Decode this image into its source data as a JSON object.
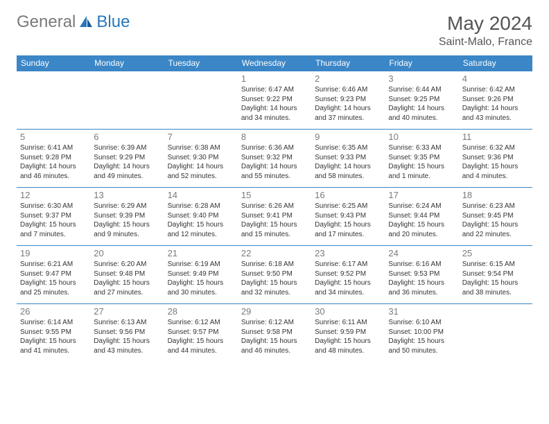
{
  "brand": {
    "part1": "General",
    "part2": "Blue"
  },
  "title": "May 2024",
  "location": "Saint-Malo, France",
  "colors": {
    "header_bg": "#3b86c6",
    "header_text": "#ffffff",
    "cell_border": "#3b86c6",
    "daynum_color": "#7a7a7a",
    "text_color": "#333333",
    "title_color": "#555555",
    "logo_gray": "#7a7a7a",
    "logo_blue": "#2976ba",
    "background": "#ffffff"
  },
  "typography": {
    "month_title_fontsize": 28,
    "location_fontsize": 16,
    "header_fontsize": 12,
    "daynum_fontsize": 13,
    "body_fontsize": 10
  },
  "day_headers": [
    "Sunday",
    "Monday",
    "Tuesday",
    "Wednesday",
    "Thursday",
    "Friday",
    "Saturday"
  ],
  "weeks": [
    [
      {
        "n": "",
        "sr": "",
        "ss": "",
        "dl": ""
      },
      {
        "n": "",
        "sr": "",
        "ss": "",
        "dl": ""
      },
      {
        "n": "",
        "sr": "",
        "ss": "",
        "dl": ""
      },
      {
        "n": "1",
        "sr": "Sunrise: 6:47 AM",
        "ss": "Sunset: 9:22 PM",
        "dl": "Daylight: 14 hours and 34 minutes."
      },
      {
        "n": "2",
        "sr": "Sunrise: 6:46 AM",
        "ss": "Sunset: 9:23 PM",
        "dl": "Daylight: 14 hours and 37 minutes."
      },
      {
        "n": "3",
        "sr": "Sunrise: 6:44 AM",
        "ss": "Sunset: 9:25 PM",
        "dl": "Daylight: 14 hours and 40 minutes."
      },
      {
        "n": "4",
        "sr": "Sunrise: 6:42 AM",
        "ss": "Sunset: 9:26 PM",
        "dl": "Daylight: 14 hours and 43 minutes."
      }
    ],
    [
      {
        "n": "5",
        "sr": "Sunrise: 6:41 AM",
        "ss": "Sunset: 9:28 PM",
        "dl": "Daylight: 14 hours and 46 minutes."
      },
      {
        "n": "6",
        "sr": "Sunrise: 6:39 AM",
        "ss": "Sunset: 9:29 PM",
        "dl": "Daylight: 14 hours and 49 minutes."
      },
      {
        "n": "7",
        "sr": "Sunrise: 6:38 AM",
        "ss": "Sunset: 9:30 PM",
        "dl": "Daylight: 14 hours and 52 minutes."
      },
      {
        "n": "8",
        "sr": "Sunrise: 6:36 AM",
        "ss": "Sunset: 9:32 PM",
        "dl": "Daylight: 14 hours and 55 minutes."
      },
      {
        "n": "9",
        "sr": "Sunrise: 6:35 AM",
        "ss": "Sunset: 9:33 PM",
        "dl": "Daylight: 14 hours and 58 minutes."
      },
      {
        "n": "10",
        "sr": "Sunrise: 6:33 AM",
        "ss": "Sunset: 9:35 PM",
        "dl": "Daylight: 15 hours and 1 minute."
      },
      {
        "n": "11",
        "sr": "Sunrise: 6:32 AM",
        "ss": "Sunset: 9:36 PM",
        "dl": "Daylight: 15 hours and 4 minutes."
      }
    ],
    [
      {
        "n": "12",
        "sr": "Sunrise: 6:30 AM",
        "ss": "Sunset: 9:37 PM",
        "dl": "Daylight: 15 hours and 7 minutes."
      },
      {
        "n": "13",
        "sr": "Sunrise: 6:29 AM",
        "ss": "Sunset: 9:39 PM",
        "dl": "Daylight: 15 hours and 9 minutes."
      },
      {
        "n": "14",
        "sr": "Sunrise: 6:28 AM",
        "ss": "Sunset: 9:40 PM",
        "dl": "Daylight: 15 hours and 12 minutes."
      },
      {
        "n": "15",
        "sr": "Sunrise: 6:26 AM",
        "ss": "Sunset: 9:41 PM",
        "dl": "Daylight: 15 hours and 15 minutes."
      },
      {
        "n": "16",
        "sr": "Sunrise: 6:25 AM",
        "ss": "Sunset: 9:43 PM",
        "dl": "Daylight: 15 hours and 17 minutes."
      },
      {
        "n": "17",
        "sr": "Sunrise: 6:24 AM",
        "ss": "Sunset: 9:44 PM",
        "dl": "Daylight: 15 hours and 20 minutes."
      },
      {
        "n": "18",
        "sr": "Sunrise: 6:23 AM",
        "ss": "Sunset: 9:45 PM",
        "dl": "Daylight: 15 hours and 22 minutes."
      }
    ],
    [
      {
        "n": "19",
        "sr": "Sunrise: 6:21 AM",
        "ss": "Sunset: 9:47 PM",
        "dl": "Daylight: 15 hours and 25 minutes."
      },
      {
        "n": "20",
        "sr": "Sunrise: 6:20 AM",
        "ss": "Sunset: 9:48 PM",
        "dl": "Daylight: 15 hours and 27 minutes."
      },
      {
        "n": "21",
        "sr": "Sunrise: 6:19 AM",
        "ss": "Sunset: 9:49 PM",
        "dl": "Daylight: 15 hours and 30 minutes."
      },
      {
        "n": "22",
        "sr": "Sunrise: 6:18 AM",
        "ss": "Sunset: 9:50 PM",
        "dl": "Daylight: 15 hours and 32 minutes."
      },
      {
        "n": "23",
        "sr": "Sunrise: 6:17 AM",
        "ss": "Sunset: 9:52 PM",
        "dl": "Daylight: 15 hours and 34 minutes."
      },
      {
        "n": "24",
        "sr": "Sunrise: 6:16 AM",
        "ss": "Sunset: 9:53 PM",
        "dl": "Daylight: 15 hours and 36 minutes."
      },
      {
        "n": "25",
        "sr": "Sunrise: 6:15 AM",
        "ss": "Sunset: 9:54 PM",
        "dl": "Daylight: 15 hours and 38 minutes."
      }
    ],
    [
      {
        "n": "26",
        "sr": "Sunrise: 6:14 AM",
        "ss": "Sunset: 9:55 PM",
        "dl": "Daylight: 15 hours and 41 minutes."
      },
      {
        "n": "27",
        "sr": "Sunrise: 6:13 AM",
        "ss": "Sunset: 9:56 PM",
        "dl": "Daylight: 15 hours and 43 minutes."
      },
      {
        "n": "28",
        "sr": "Sunrise: 6:12 AM",
        "ss": "Sunset: 9:57 PM",
        "dl": "Daylight: 15 hours and 44 minutes."
      },
      {
        "n": "29",
        "sr": "Sunrise: 6:12 AM",
        "ss": "Sunset: 9:58 PM",
        "dl": "Daylight: 15 hours and 46 minutes."
      },
      {
        "n": "30",
        "sr": "Sunrise: 6:11 AM",
        "ss": "Sunset: 9:59 PM",
        "dl": "Daylight: 15 hours and 48 minutes."
      },
      {
        "n": "31",
        "sr": "Sunrise: 6:10 AM",
        "ss": "Sunset: 10:00 PM",
        "dl": "Daylight: 15 hours and 50 minutes."
      },
      {
        "n": "",
        "sr": "",
        "ss": "",
        "dl": ""
      }
    ]
  ]
}
